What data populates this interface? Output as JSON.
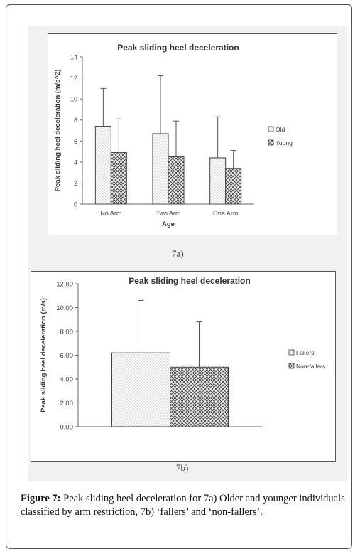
{
  "chart_data": [
    {
      "type": "bar",
      "title": "Peak sliding heel deceleration",
      "xlabel": "Age",
      "ylabel": "Peak sliding heel deceleration (m/s^2)",
      "ylim": [
        0,
        14
      ],
      "yticks": [
        "0",
        "2",
        "4",
        "6",
        "8",
        "10",
        "12",
        "14"
      ],
      "categories": [
        "No Arm",
        "Two Arm",
        "One Arm"
      ],
      "series": [
        {
          "name": "Old",
          "values": [
            7.4,
            6.7,
            4.4
          ],
          "errors": [
            3.6,
            5.5,
            3.9
          ],
          "pattern": "dots"
        },
        {
          "name": "Young",
          "values": [
            4.9,
            4.5,
            3.4
          ],
          "errors": [
            3.2,
            3.4,
            1.7
          ],
          "pattern": "crosshatch"
        }
      ],
      "legend_position": "right"
    },
    {
      "type": "bar",
      "title": "Peak sliding heel deceleration",
      "xlabel": "",
      "ylabel": "Peak sliding heel deceleration (m/s)",
      "ylim": [
        0,
        12
      ],
      "yticks": [
        "0.00",
        "2.00",
        "4.00",
        "6.00",
        "8.00",
        "10.00",
        "12.00"
      ],
      "categories": [
        ""
      ],
      "series": [
        {
          "name": "Fallers",
          "values": [
            6.2
          ],
          "errors": [
            4.4
          ],
          "pattern": "dots"
        },
        {
          "name": "Non-fallers",
          "values": [
            5.0
          ],
          "errors": [
            3.8
          ],
          "pattern": "crosshatch"
        }
      ],
      "legend_position": "right"
    }
  ],
  "panel_labels": {
    "a": "7a)",
    "b": "7b)"
  },
  "caption": {
    "label": "Figure 7:",
    "text": " Peak sliding heel deceleration for 7a) Older and younger individuals classified by arm restriction, 7b) ‘fallers’ and ‘non-fallers’."
  }
}
